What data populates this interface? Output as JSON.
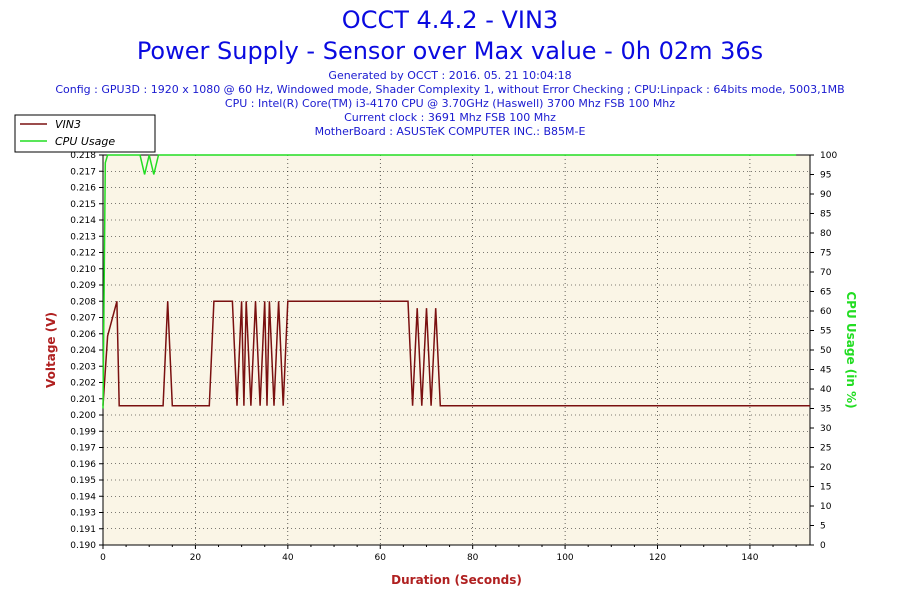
{
  "header": {
    "title": "OCCT 4.4.2 - VIN3",
    "subtitle": "Power Supply - Sensor over Max value - 0h 02m 36s",
    "info_lines": [
      "Generated by OCCT : 2016. 05. 21 10:04:18",
      "Config : GPU3D : 1920 x 1080 @ 60 Hz, Windowed mode, Shader Complexity 1, without Error Checking ; CPU:Linpack : 64bits mode, 5003,1MB",
      "CPU : Intel(R) Core(TM) i3-4170 CPU @ 3.70GHz (Haswell) 3700 Mhz FSB 100 Mhz",
      "Current clock : 3691 Mhz FSB 100 Mhz",
      "MotherBoard : ASUSTeK COMPUTER INC.: B85M-E"
    ]
  },
  "colors": {
    "voltage": "#7a1010",
    "cpu": "#22dd22",
    "plot_bg": "#faf5e6",
    "grid": "#000000",
    "title": "#0a0ae0"
  },
  "chart_data": {
    "type": "line",
    "xlabel": "Duration (Seconds)",
    "ylabel": "Voltage (V)",
    "y2label": "CPU Usage (in %)",
    "xlim": [
      0,
      153
    ],
    "ylim": [
      0.19,
      0.218
    ],
    "y2lim": [
      0,
      100
    ],
    "x_ticks": [
      "0",
      "20",
      "40",
      "60",
      "80",
      "100",
      "120",
      "140"
    ],
    "x_tick_values": [
      0,
      20,
      40,
      60,
      80,
      100,
      120,
      140
    ],
    "y_ticks": [
      "0.190",
      "0.191",
      "0.193",
      "0.194",
      "0.195",
      "0.196",
      "0.197",
      "0.199",
      "0.200",
      "0.201",
      "0.202",
      "0.203",
      "0.204",
      "0.206",
      "0.207",
      "0.208",
      "0.209",
      "0.210",
      "0.212",
      "0.213",
      "0.214",
      "0.215",
      "0.216",
      "0.217",
      "0.218"
    ],
    "y2_ticks": [
      "0",
      "5",
      "10",
      "15",
      "20",
      "25",
      "30",
      "35",
      "40",
      "45",
      "50",
      "55",
      "60",
      "65",
      "70",
      "75",
      "80",
      "85",
      "90",
      "95",
      "100"
    ],
    "grid": true,
    "legend_position": "top-left",
    "series": [
      {
        "name": "VIN3",
        "axis": "left",
        "x": [
          0,
          1,
          3,
          3.5,
          13,
          14,
          15,
          16,
          23,
          24,
          28,
          29,
          30,
          30.5,
          31,
          32,
          33,
          34,
          35,
          35.5,
          36,
          37,
          38,
          39,
          40,
          66,
          67,
          68,
          69,
          70,
          71,
          72,
          73,
          73.5,
          74,
          153
        ],
        "y": [
          0.2,
          0.205,
          0.2075,
          0.2,
          0.2,
          0.2075,
          0.2,
          0.2,
          0.2,
          0.2075,
          0.2075,
          0.2,
          0.2075,
          0.2,
          0.2075,
          0.2,
          0.2075,
          0.2,
          0.2075,
          0.2,
          0.2075,
          0.2,
          0.2075,
          0.2,
          0.2075,
          0.2075,
          0.2,
          0.207,
          0.2,
          0.207,
          0.2,
          0.207,
          0.2,
          0.2,
          0.2,
          0.2
        ]
      },
      {
        "name": "CPU Usage",
        "axis": "right",
        "x": [
          0,
          0.5,
          1,
          8,
          9,
          10,
          11,
          12,
          13,
          150
        ],
        "y": [
          35,
          98,
          100,
          100,
          95,
          100,
          95,
          100,
          100,
          100
        ]
      }
    ]
  }
}
